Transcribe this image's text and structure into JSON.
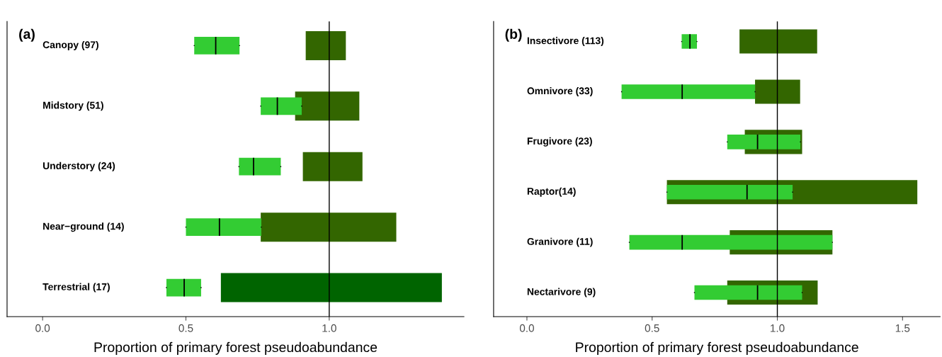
{
  "chart_data": [
    {
      "type": "bar",
      "orientation": "horizontal",
      "title": "(a)",
      "xlabel": "Proportion of primary forest pseudoabundance",
      "categories": [
        "Canopy (97)",
        "Midstory (51)",
        "Understory (24)",
        "Near−ground (14)",
        "Terrestrial (17)"
      ],
      "xlim": [
        -0.124,
        1.47
      ],
      "xticks": [
        {
          "value": 0,
          "label": "0.0"
        },
        {
          "value": 0.5,
          "label": "0.5"
        },
        {
          "value": 1,
          "label": "1.0"
        }
      ],
      "tick_labels": "x",
      "grid": false,
      "ref_lines": [
        {
          "axis": "x",
          "value": 1.0,
          "color": "#000000"
        }
      ],
      "series": [
        {
          "colors": [
            "#336600",
            "#336600",
            "#336600",
            "#336600",
            "#006400"
          ],
          "base": [
            0.918,
            0.881,
            0.908,
            0.761,
            0.622
          ],
          "values": [
            0.14,
            0.224,
            0.208,
            0.473,
            0.771
          ]
        },
        {
          "type": "box",
          "color": "#33cc33",
          "boxes": [
            {
              "low": 0.529,
              "q1": 0.529,
              "median": 0.604,
              "q3": 0.687,
              "high": 0.687
            },
            {
              "low": 0.761,
              "q1": 0.761,
              "median": 0.819,
              "q3": 0.904,
              "high": 0.904
            },
            {
              "low": 0.685,
              "q1": 0.685,
              "median": 0.736,
              "q3": 0.831,
              "high": 0.831
            },
            {
              "low": 0.5,
              "q1": 0.5,
              "median": 0.617,
              "q3": 0.763,
              "high": 0.763
            },
            {
              "low": 0.432,
              "q1": 0.432,
              "median": 0.494,
              "q3": 0.553,
              "high": 0.553
            }
          ]
        }
      ]
    },
    {
      "type": "bar",
      "orientation": "horizontal",
      "title": "(b)",
      "xlabel": "Proportion of primary forest pseudoabundance",
      "categories": [
        "Insectivore (113)",
        "Omnivore (33)",
        "Frugivore (23)",
        "Raptor(14)",
        "Granivore (11)",
        "Nectarivore (9)"
      ],
      "xlim": [
        -0.133,
        1.65
      ],
      "xticks": [
        {
          "value": 0,
          "label": "0.0"
        },
        {
          "value": 0.5,
          "label": "0.5"
        },
        {
          "value": 1,
          "label": "1.0"
        },
        {
          "value": 1.5,
          "label": "1.5"
        }
      ],
      "tick_labels": "x",
      "grid": false,
      "ref_lines": [
        {
          "axis": "x",
          "value": 1.0,
          "color": "#000000"
        }
      ],
      "series": [
        {
          "colors": [
            "#336600",
            "#336600",
            "#336600",
            "#336600",
            "#336600",
            "#336600"
          ],
          "base": [
            0.849,
            0.911,
            0.87,
            0.559,
            0.81,
            0.8
          ],
          "values": [
            0.31,
            0.18,
            0.229,
            1.0,
            0.41,
            0.361
          ]
        },
        {
          "type": "box",
          "color": "#33cc33",
          "boxes": [
            {
              "low": 0.618,
              "q1": 0.618,
              "median": 0.651,
              "q3": 0.679,
              "high": 0.679
            },
            {
              "low": 0.378,
              "q1": 0.378,
              "median": 0.62,
              "q3": 0.911,
              "high": 0.911
            },
            {
              "low": 0.8,
              "q1": 0.8,
              "median": 0.921,
              "q3": 1.092,
              "high": 1.092
            },
            {
              "low": 0.559,
              "q1": 0.559,
              "median": 0.879,
              "q3": 1.061,
              "high": 1.061
            },
            {
              "low": 0.409,
              "q1": 0.409,
              "median": 0.62,
              "q3": 1.22,
              "high": 1.22
            },
            {
              "low": 0.669,
              "q1": 0.669,
              "median": 0.921,
              "q3": 1.099,
              "high": 1.099
            }
          ]
        }
      ]
    }
  ]
}
